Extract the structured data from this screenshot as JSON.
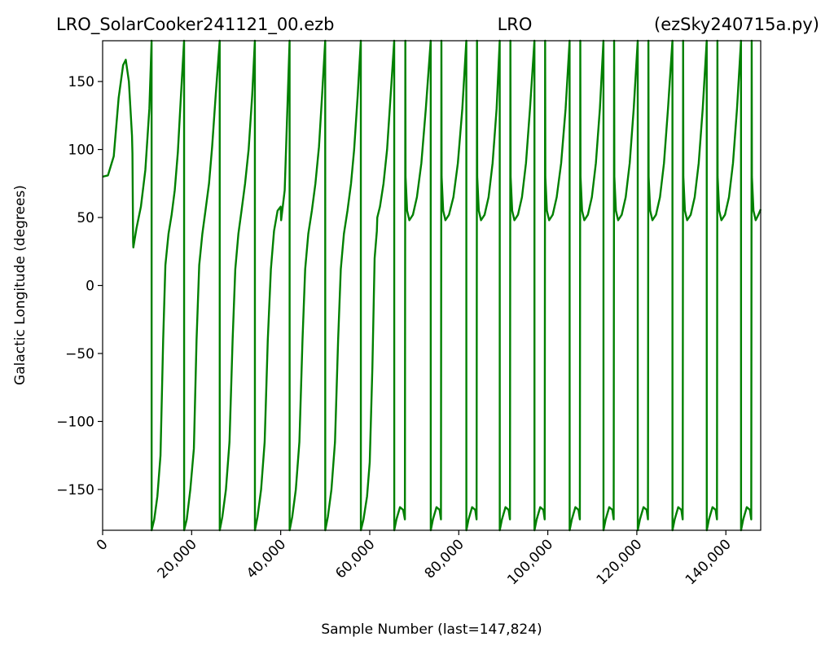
{
  "titles": {
    "left": "LRO_SolarCooker241121_00.ezb",
    "center": "LRO",
    "right": "(ezSky240715a.py)"
  },
  "chart_data": {
    "type": "line",
    "xlabel": "Sample Number (last=147,824)",
    "ylabel": "Galactic Longitude (degrees)",
    "xlim": [
      0,
      147824
    ],
    "ylim": [
      -180,
      180
    ],
    "x_ticks": [
      0,
      20000,
      40000,
      60000,
      80000,
      100000,
      120000,
      140000
    ],
    "x_tick_labels": [
      "0",
      "20,000",
      "40,000",
      "60,000",
      "80,000",
      "100,000",
      "120,000",
      "140,000"
    ],
    "y_ticks": [
      150,
      100,
      50,
      0,
      -50,
      -100,
      -150
    ],
    "y_tick_labels": [
      "150",
      "100",
      "50",
      "0",
      "−50",
      "−100",
      "−150"
    ],
    "grid": false,
    "line_color": "#008000",
    "series": [
      {
        "points": [
          [
            0,
            80
          ],
          [
            1200,
            81
          ],
          [
            2500,
            95
          ],
          [
            3600,
            138
          ],
          [
            4600,
            162
          ],
          [
            5200,
            166
          ],
          [
            5900,
            150
          ],
          [
            6600,
            110
          ],
          [
            6700,
            97
          ],
          [
            6850,
            32
          ],
          [
            6900,
            28
          ],
          [
            7600,
            42
          ],
          [
            8600,
            58
          ],
          [
            9600,
            85
          ],
          [
            10500,
            130
          ],
          [
            11000,
            180
          ],
          [
            11010,
            -180
          ],
          [
            11600,
            -172
          ],
          [
            12300,
            -155
          ],
          [
            13000,
            -125
          ],
          [
            13600,
            -40
          ],
          [
            14100,
            15
          ],
          [
            14800,
            38
          ],
          [
            15500,
            52
          ],
          [
            16200,
            70
          ],
          [
            16900,
            98
          ],
          [
            17600,
            140
          ],
          [
            18300,
            180
          ],
          [
            18310,
            -180
          ],
          [
            18900,
            -172
          ],
          [
            19700,
            -150
          ],
          [
            20500,
            -120
          ],
          [
            21100,
            -40
          ],
          [
            21700,
            15
          ],
          [
            22400,
            38
          ],
          [
            23100,
            55
          ],
          [
            23900,
            75
          ],
          [
            24600,
            102
          ],
          [
            25400,
            140
          ],
          [
            26300,
            180
          ],
          [
            26310,
            -180
          ],
          [
            26900,
            -170
          ],
          [
            27700,
            -150
          ],
          [
            28500,
            -115
          ],
          [
            29200,
            -40
          ],
          [
            29800,
            12
          ],
          [
            30500,
            38
          ],
          [
            31200,
            55
          ],
          [
            32000,
            75
          ],
          [
            32800,
            100
          ],
          [
            33600,
            140
          ],
          [
            34200,
            180
          ],
          [
            34210,
            -180
          ],
          [
            34800,
            -170
          ],
          [
            35600,
            -150
          ],
          [
            36400,
            -115
          ],
          [
            37100,
            -40
          ],
          [
            37800,
            12
          ],
          [
            38500,
            40
          ],
          [
            39300,
            55
          ],
          [
            40000,
            58
          ],
          [
            40100,
            48
          ],
          [
            40900,
            70
          ],
          [
            41400,
            120
          ],
          [
            42000,
            180
          ],
          [
            42010,
            -180
          ],
          [
            42600,
            -170
          ],
          [
            43400,
            -150
          ],
          [
            44200,
            -115
          ],
          [
            44900,
            -40
          ],
          [
            45500,
            12
          ],
          [
            46200,
            38
          ],
          [
            47000,
            55
          ],
          [
            47800,
            75
          ],
          [
            48600,
            102
          ],
          [
            49300,
            140
          ],
          [
            50000,
            180
          ],
          [
            50010,
            -180
          ],
          [
            50600,
            -170
          ],
          [
            51400,
            -150
          ],
          [
            52200,
            -115
          ],
          [
            52900,
            -40
          ],
          [
            53500,
            12
          ],
          [
            54200,
            38
          ],
          [
            55000,
            55
          ],
          [
            55800,
            75
          ],
          [
            56500,
            100
          ],
          [
            57300,
            140
          ],
          [
            58000,
            180
          ],
          [
            58010,
            -180
          ],
          [
            58600,
            -172
          ],
          [
            59400,
            -155
          ],
          [
            60000,
            -130
          ],
          [
            60600,
            -60
          ],
          [
            61100,
            20
          ],
          [
            61600,
            40
          ],
          [
            61700,
            50
          ],
          [
            62300,
            58
          ],
          [
            63100,
            75
          ],
          [
            63900,
            100
          ],
          [
            64700,
            140
          ],
          [
            65500,
            180
          ],
          [
            65510,
            -180
          ],
          [
            66000,
            -172
          ],
          [
            66800,
            -163
          ],
          [
            67500,
            -165
          ],
          [
            67900,
            -172
          ],
          [
            68000,
            180
          ],
          [
            68050,
            80
          ],
          [
            68400,
            55
          ],
          [
            68900,
            48
          ],
          [
            69700,
            52
          ],
          [
            70600,
            65
          ],
          [
            71600,
            90
          ],
          [
            72600,
            130
          ],
          [
            73700,
            180
          ],
          [
            73710,
            -180
          ],
          [
            74200,
            -172
          ],
          [
            75000,
            -163
          ],
          [
            75700,
            -165
          ],
          [
            76000,
            -172
          ],
          [
            76100,
            180
          ],
          [
            76150,
            80
          ],
          [
            76500,
            55
          ],
          [
            77000,
            48
          ],
          [
            77800,
            52
          ],
          [
            78800,
            65
          ],
          [
            79800,
            90
          ],
          [
            80800,
            130
          ],
          [
            81700,
            180
          ],
          [
            81710,
            -180
          ],
          [
            82200,
            -172
          ],
          [
            83000,
            -163
          ],
          [
            83700,
            -165
          ],
          [
            84000,
            -172
          ],
          [
            84100,
            180
          ],
          [
            84150,
            80
          ],
          [
            84500,
            55
          ],
          [
            85000,
            48
          ],
          [
            85800,
            52
          ],
          [
            86700,
            65
          ],
          [
            87600,
            90
          ],
          [
            88500,
            130
          ],
          [
            89200,
            180
          ],
          [
            89210,
            -180
          ],
          [
            89700,
            -172
          ],
          [
            90500,
            -163
          ],
          [
            91200,
            -165
          ],
          [
            91500,
            -172
          ],
          [
            91600,
            180
          ],
          [
            91650,
            80
          ],
          [
            92000,
            55
          ],
          [
            92500,
            48
          ],
          [
            93300,
            52
          ],
          [
            94200,
            65
          ],
          [
            95100,
            90
          ],
          [
            96000,
            130
          ],
          [
            97000,
            180
          ],
          [
            97010,
            -180
          ],
          [
            97500,
            -172
          ],
          [
            98300,
            -163
          ],
          [
            99000,
            -165
          ],
          [
            99300,
            -172
          ],
          [
            99400,
            180
          ],
          [
            99450,
            80
          ],
          [
            99800,
            55
          ],
          [
            100300,
            48
          ],
          [
            101100,
            52
          ],
          [
            102000,
            65
          ],
          [
            103000,
            90
          ],
          [
            104000,
            130
          ],
          [
            104900,
            180
          ],
          [
            104910,
            -180
          ],
          [
            105400,
            -172
          ],
          [
            106200,
            -163
          ],
          [
            106900,
            -165
          ],
          [
            107200,
            -172
          ],
          [
            107300,
            180
          ],
          [
            107350,
            80
          ],
          [
            107700,
            55
          ],
          [
            108200,
            48
          ],
          [
            109000,
            52
          ],
          [
            109900,
            65
          ],
          [
            110800,
            90
          ],
          [
            111700,
            130
          ],
          [
            112500,
            180
          ],
          [
            112510,
            -180
          ],
          [
            113000,
            -172
          ],
          [
            113800,
            -163
          ],
          [
            114500,
            -165
          ],
          [
            114800,
            -172
          ],
          [
            114900,
            180
          ],
          [
            114950,
            80
          ],
          [
            115300,
            55
          ],
          [
            115800,
            48
          ],
          [
            116600,
            52
          ],
          [
            117500,
            65
          ],
          [
            118400,
            90
          ],
          [
            119300,
            130
          ],
          [
            120200,
            180
          ],
          [
            120210,
            -180
          ],
          [
            120700,
            -172
          ],
          [
            121500,
            -163
          ],
          [
            122200,
            -165
          ],
          [
            122500,
            -172
          ],
          [
            122600,
            180
          ],
          [
            122650,
            80
          ],
          [
            123000,
            55
          ],
          [
            123500,
            48
          ],
          [
            124300,
            52
          ],
          [
            125200,
            65
          ],
          [
            126100,
            90
          ],
          [
            127000,
            130
          ],
          [
            128000,
            180
          ],
          [
            128010,
            -180
          ],
          [
            128500,
            -172
          ],
          [
            129300,
            -163
          ],
          [
            130000,
            -165
          ],
          [
            130300,
            -172
          ],
          [
            130400,
            180
          ],
          [
            130450,
            80
          ],
          [
            130800,
            55
          ],
          [
            131300,
            48
          ],
          [
            132100,
            52
          ],
          [
            133000,
            65
          ],
          [
            133900,
            90
          ],
          [
            134800,
            130
          ],
          [
            135700,
            180
          ],
          [
            135710,
            -180
          ],
          [
            136200,
            -172
          ],
          [
            137000,
            -163
          ],
          [
            137700,
            -165
          ],
          [
            138000,
            -172
          ],
          [
            138100,
            180
          ],
          [
            138150,
            80
          ],
          [
            138500,
            55
          ],
          [
            139000,
            48
          ],
          [
            139800,
            52
          ],
          [
            140700,
            65
          ],
          [
            141600,
            90
          ],
          [
            142500,
            130
          ],
          [
            143400,
            180
          ],
          [
            143410,
            -180
          ],
          [
            143900,
            -172
          ],
          [
            144700,
            -163
          ],
          [
            145400,
            -165
          ],
          [
            145700,
            -172
          ],
          [
            145800,
            180
          ],
          [
            145850,
            80
          ],
          [
            146200,
            55
          ],
          [
            146700,
            48
          ],
          [
            147300,
            52
          ],
          [
            147824,
            56
          ]
        ]
      }
    ]
  }
}
